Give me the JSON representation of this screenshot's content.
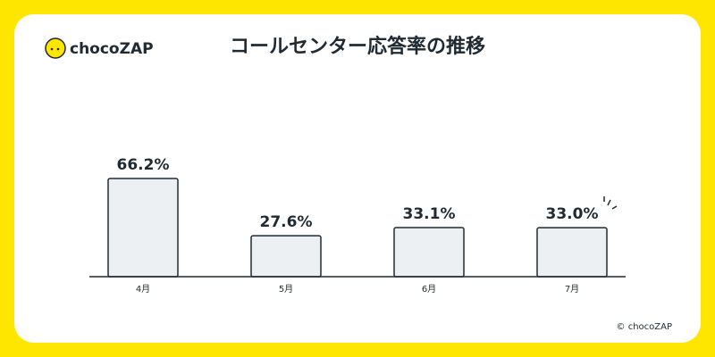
{
  "brand": "chocoZAP",
  "copyright": "© chocoZAP",
  "chart_data": {
    "type": "bar",
    "title": "コールセンター応答率の推移",
    "categories": [
      "4月",
      "5月",
      "6月",
      "7月"
    ],
    "values": [
      66.2,
      27.6,
      33.1,
      33.0
    ],
    "value_labels": [
      "66.2%",
      "27.6%",
      "33.1%",
      "33.0%"
    ],
    "color": "#edf0f3"
  }
}
